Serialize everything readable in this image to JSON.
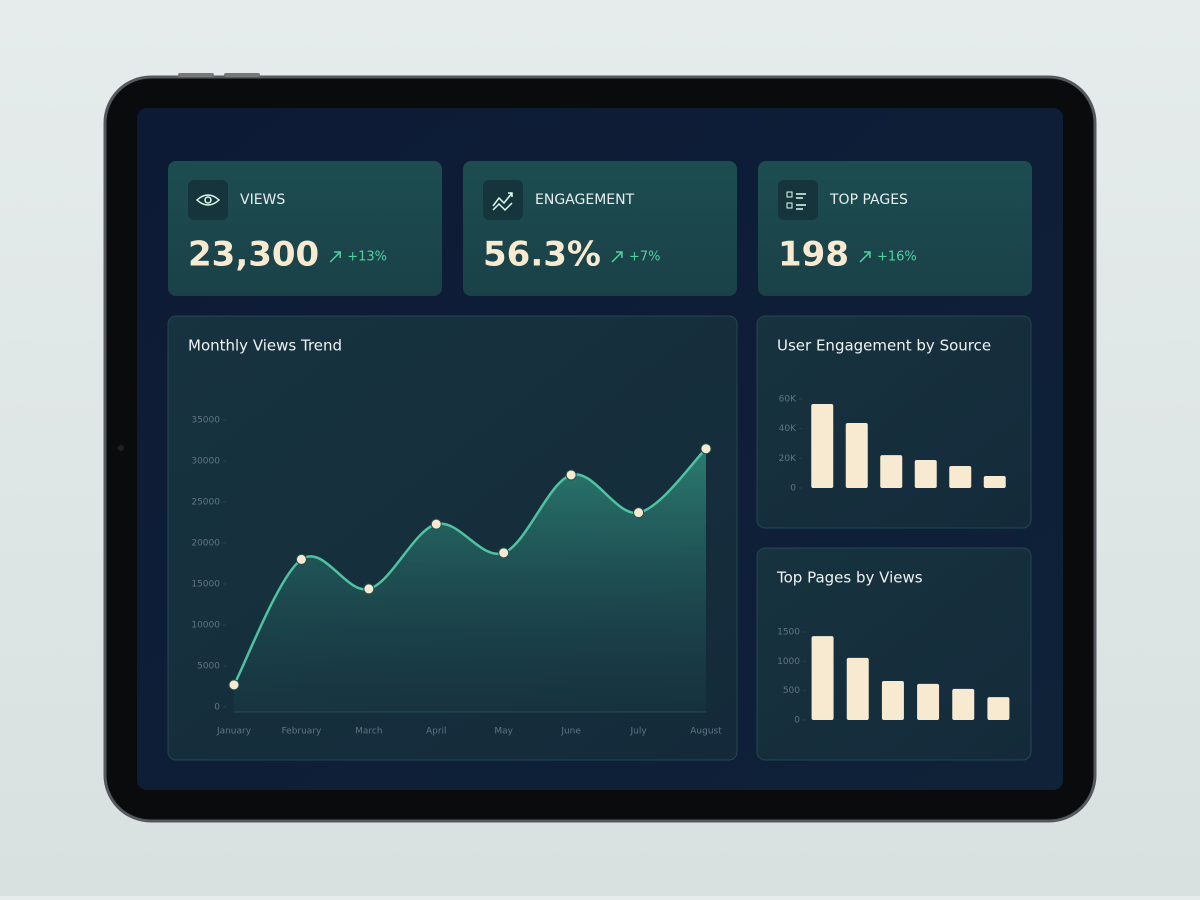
{
  "kpis": [
    {
      "label": "VIEWS",
      "value": "23,300",
      "change": "+13%"
    },
    {
      "label": "ENGAGEMENT",
      "value": "56.3%",
      "change": "+7%"
    },
    {
      "label": "TOP PAGES",
      "value": "198",
      "change": "+16%"
    }
  ],
  "chart_data": [
    {
      "type": "area",
      "title": "Monthly Views Trend",
      "categories": [
        "January",
        "February",
        "March",
        "April",
        "May",
        "June",
        "July",
        "August"
      ],
      "values": [
        2700,
        18000,
        14400,
        22300,
        18800,
        28300,
        23700,
        31500
      ],
      "color": "#4fc3a1",
      "ylim": [
        0,
        35000
      ],
      "yticks": [
        0,
        5000,
        10000,
        15000,
        20000,
        25000,
        30000,
        35000
      ]
    },
    {
      "type": "bar",
      "title": "User Engagement by Source",
      "categories": [
        null,
        null,
        null,
        null,
        null,
        null
      ],
      "values": [
        56600,
        43800,
        22200,
        18900,
        14800,
        8100
      ],
      "color": "#f7ead0",
      "ylim": [
        0,
        60000
      ],
      "yticks": [
        0,
        {
          "value": 20000,
          "label": "20K"
        },
        {
          "value": 40000,
          "label": "40K"
        },
        {
          "value": 60000,
          "label": "60K"
        }
      ]
    },
    {
      "type": "bar",
      "title": "Top Pages by Views",
      "categories": [
        null,
        null,
        null,
        null,
        null,
        null
      ],
      "values": [
        1430,
        1060,
        665,
        615,
        530,
        390
      ],
      "color": "#f7ead0",
      "ylim": [
        0,
        1500
      ],
      "yticks": [
        0,
        500,
        1000,
        1500
      ]
    }
  ]
}
